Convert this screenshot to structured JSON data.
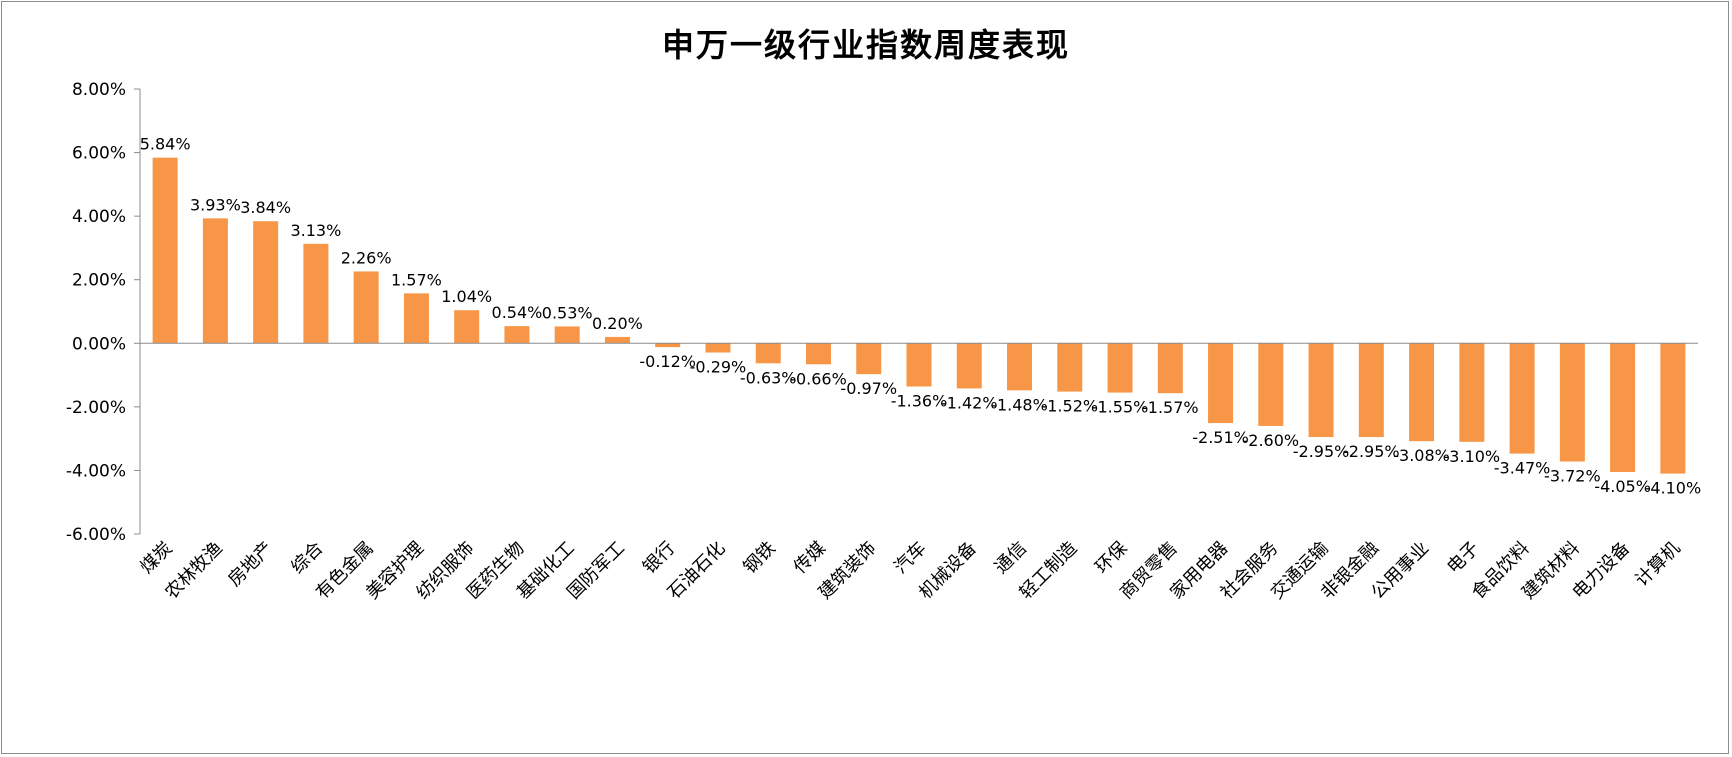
{
  "chart_data": {
    "type": "bar",
    "title": "申万一级行业指数周度表现",
    "xlabel": "",
    "ylabel": "",
    "ylim": [
      -6,
      8
    ],
    "yticks": [
      "8.00%",
      "6.00%",
      "4.00%",
      "2.00%",
      "0.00%",
      "-2.00%",
      "-4.00%",
      "-6.00%"
    ],
    "ytick_values": [
      8,
      6,
      4,
      2,
      0,
      -2,
      -4,
      -6
    ],
    "grid": false,
    "legend": "none",
    "bar_color": "#F79646",
    "categories": [
      "煤炭",
      "农林牧渔",
      "房地产",
      "综合",
      "有色金属",
      "美容护理",
      "纺织服饰",
      "医药生物",
      "基础化工",
      "国防军工",
      "银行",
      "石油石化",
      "钢铁",
      "传媒",
      "建筑装饰",
      "汽车",
      "机械设备",
      "通信",
      "轻工制造",
      "环保",
      "商贸零售",
      "家用电器",
      "社会服务",
      "交通运输",
      "非银金融",
      "公用事业",
      "电子",
      "食品饮料",
      "建筑材料",
      "电力设备",
      "计算机"
    ],
    "values": [
      5.84,
      3.93,
      3.84,
      3.13,
      2.26,
      1.57,
      1.04,
      0.54,
      0.53,
      0.2,
      -0.12,
      -0.29,
      -0.63,
      -0.66,
      -0.97,
      -1.36,
      -1.42,
      -1.48,
      -1.52,
      -1.55,
      -1.57,
      -2.51,
      -2.6,
      -2.95,
      -2.95,
      -3.08,
      -3.1,
      -3.47,
      -3.72,
      -4.05,
      -4.1
    ],
    "data_labels": [
      "5.84%",
      "3.93%",
      "3.84%",
      "3.13%",
      "2.26%",
      "1.57%",
      "1.04%",
      "0.54%",
      "0.53%",
      "0.20%",
      "-0.12%",
      "-0.29%",
      "-0.63%",
      "-0.66%",
      "-0.97%",
      "-1.36%",
      "-1.42%",
      "-1.48%",
      "-1.52%",
      "-1.55%",
      "-1.57%",
      "-2.51%",
      "-2.60%",
      "-2.95%",
      "-2.95%",
      "-3.08%",
      "-3.10%",
      "-3.47%",
      "-3.72%",
      "-4.05%",
      "-4.10%"
    ]
  }
}
